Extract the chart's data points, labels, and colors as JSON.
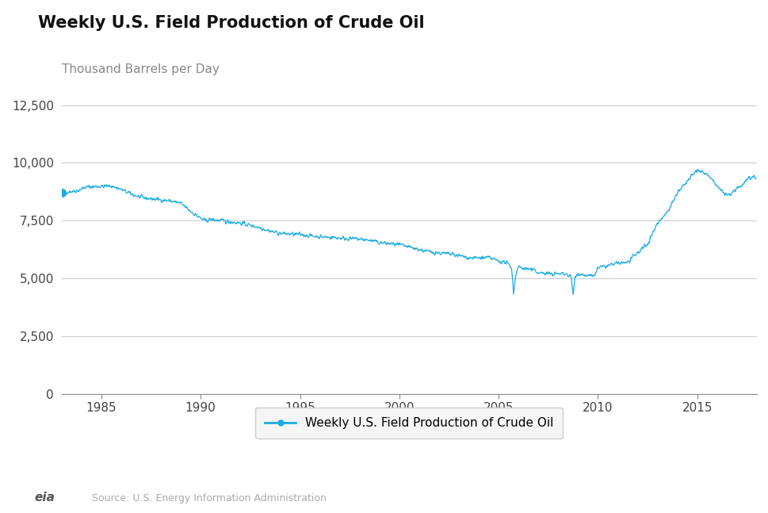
{
  "title": "Weekly U.S. Field Production of Crude Oil",
  "ylabel": "Thousand Barrels per Day",
  "legend_label": "Weekly U.S. Field Production of Crude Oil",
  "source_text": "Source: U.S. Energy Information Administration",
  "line_color": "#1aabe0",
  "background_color": "#ffffff",
  "ylim": [
    0,
    13000
  ],
  "yticks": [
    0,
    2500,
    5000,
    7500,
    10000,
    12500
  ],
  "xlim_start": 1983.0,
  "xlim_end": 2018.0,
  "xticks": [
    1985,
    1990,
    1995,
    2000,
    2005,
    2010,
    2015
  ],
  "anchors": [
    [
      1983.0,
      8700
    ],
    [
      1983.3,
      8750
    ],
    [
      1983.8,
      8800
    ],
    [
      1984.2,
      8950
    ],
    [
      1984.8,
      8980
    ],
    [
      1985.5,
      9000
    ],
    [
      1986.0,
      8850
    ],
    [
      1986.5,
      8650
    ],
    [
      1987.0,
      8500
    ],
    [
      1987.5,
      8450
    ],
    [
      1988.0,
      8400
    ],
    [
      1988.5,
      8350
    ],
    [
      1989.0,
      8250
    ],
    [
      1989.5,
      7900
    ],
    [
      1990.0,
      7600
    ],
    [
      1990.2,
      7500
    ],
    [
      1990.5,
      7550
    ],
    [
      1991.0,
      7500
    ],
    [
      1991.5,
      7450
    ],
    [
      1992.0,
      7400
    ],
    [
      1992.5,
      7300
    ],
    [
      1993.0,
      7200
    ],
    [
      1993.5,
      7050
    ],
    [
      1994.0,
      6950
    ],
    [
      1994.5,
      6920
    ],
    [
      1995.0,
      6900
    ],
    [
      1995.5,
      6850
    ],
    [
      1996.0,
      6800
    ],
    [
      1996.5,
      6780
    ],
    [
      1997.0,
      6750
    ],
    [
      1997.5,
      6720
    ],
    [
      1998.0,
      6700
    ],
    [
      1998.5,
      6650
    ],
    [
      1999.0,
      6550
    ],
    [
      1999.5,
      6500
    ],
    [
      2000.0,
      6450
    ],
    [
      2000.5,
      6350
    ],
    [
      2001.0,
      6250
    ],
    [
      2001.5,
      6150
    ],
    [
      2002.0,
      6100
    ],
    [
      2002.5,
      6050
    ],
    [
      2003.0,
      5980
    ],
    [
      2003.5,
      5900
    ],
    [
      2004.0,
      5880
    ],
    [
      2004.5,
      5900
    ],
    [
      2005.0,
      5750
    ],
    [
      2005.3,
      5700
    ],
    [
      2005.5,
      5600
    ],
    [
      2005.65,
      5500
    ],
    [
      2005.75,
      4350
    ],
    [
      2005.85,
      5100
    ],
    [
      2005.95,
      5450
    ],
    [
      2006.0,
      5500
    ],
    [
      2006.2,
      5450
    ],
    [
      2006.5,
      5400
    ],
    [
      2006.8,
      5350
    ],
    [
      2007.0,
      5250
    ],
    [
      2007.5,
      5200
    ],
    [
      2008.0,
      5200
    ],
    [
      2008.4,
      5200
    ],
    [
      2008.65,
      5050
    ],
    [
      2008.75,
      4300
    ],
    [
      2008.85,
      5100
    ],
    [
      2008.95,
      5200
    ],
    [
      2009.0,
      5200
    ],
    [
      2009.3,
      5150
    ],
    [
      2009.5,
      5100
    ],
    [
      2009.8,
      5100
    ],
    [
      2010.0,
      5450
    ],
    [
      2010.5,
      5550
    ],
    [
      2011.0,
      5650
    ],
    [
      2011.5,
      5700
    ],
    [
      2012.0,
      6100
    ],
    [
      2012.5,
      6500
    ],
    [
      2013.0,
      7400
    ],
    [
      2013.5,
      7900
    ],
    [
      2014.0,
      8700
    ],
    [
      2014.5,
      9200
    ],
    [
      2015.0,
      9700
    ],
    [
      2015.2,
      9600
    ],
    [
      2015.5,
      9500
    ],
    [
      2015.8,
      9200
    ],
    [
      2016.0,
      9000
    ],
    [
      2016.2,
      8800
    ],
    [
      2016.5,
      8600
    ],
    [
      2016.8,
      8700
    ],
    [
      2017.0,
      8900
    ],
    [
      2017.3,
      9100
    ],
    [
      2017.5,
      9300
    ],
    [
      2017.7,
      9400
    ],
    [
      2017.95,
      9400
    ]
  ]
}
